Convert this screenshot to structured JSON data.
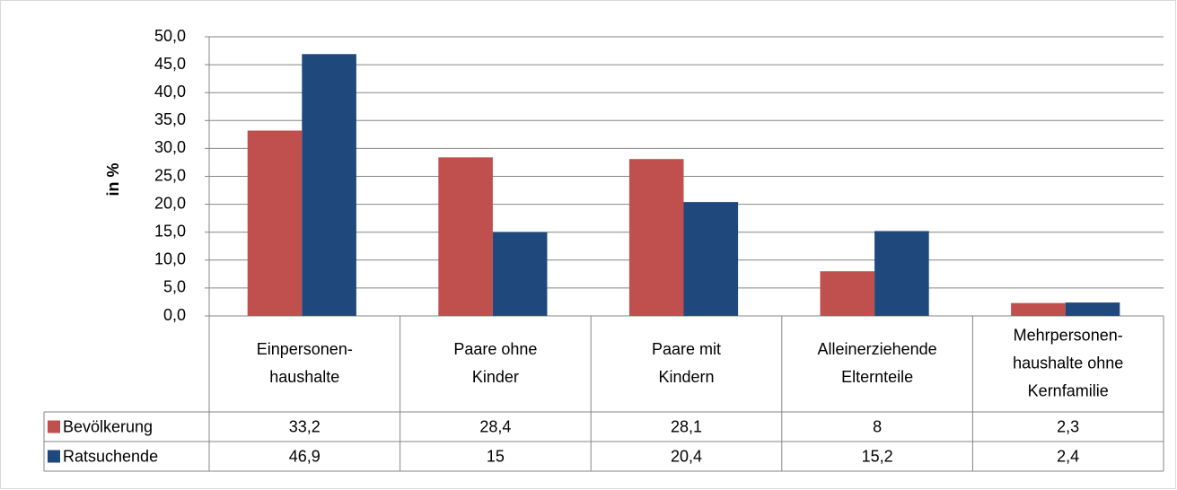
{
  "chart_data": {
    "type": "bar",
    "y_label": "in %",
    "categories": [
      [
        "Einpersonen-",
        "haushalte"
      ],
      [
        "Paare ohne",
        "Kinder"
      ],
      [
        "Paare mit",
        "Kindern"
      ],
      [
        "Alleinerziehende",
        "Elternteile"
      ],
      [
        "Mehrpersonen-",
        "haushalte ohne",
        "Kernfamilie"
      ]
    ],
    "series": [
      {
        "name": "Bevölkerung",
        "color": "#c0504d",
        "values": [
          33.2,
          28.4,
          28.1,
          8,
          2.3
        ],
        "value_labels": [
          "33,2",
          "28,4",
          "28,1",
          "8",
          "2,3"
        ]
      },
      {
        "name": "Ratsuchende",
        "color": "#1f497d",
        "values": [
          46.9,
          15,
          20.4,
          15.2,
          2.4
        ],
        "value_labels": [
          "46,9",
          "15",
          "20,4",
          "15,2",
          "2,4"
        ]
      }
    ],
    "ylim": [
      0,
      50
    ],
    "yticks": [
      {
        "value": 0,
        "label": "0,0"
      },
      {
        "value": 5,
        "label": "5,0"
      },
      {
        "value": 10,
        "label": "10,0"
      },
      {
        "value": 15,
        "label": "15,0"
      },
      {
        "value": 20,
        "label": "20,0"
      },
      {
        "value": 25,
        "label": "25,0"
      },
      {
        "value": 30,
        "label": "30,0"
      },
      {
        "value": 35,
        "label": "35,0"
      },
      {
        "value": 40,
        "label": "40,0"
      },
      {
        "value": 45,
        "label": "45,0"
      },
      {
        "value": 50,
        "label": "50,0"
      }
    ],
    "grid": true
  }
}
